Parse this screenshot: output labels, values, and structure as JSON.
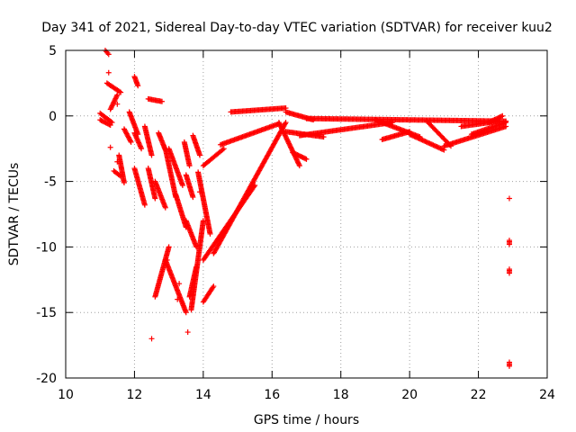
{
  "chart_data": {
    "type": "scatter",
    "title": "Day 341 of 2021, Sidereal Day-to-day VTEC variation (SDTVAR) for receiver kuu2",
    "xlabel": "GPS time / hours",
    "ylabel": "SDTVAR / TECUs",
    "xlim": [
      10,
      24
    ],
    "ylim": [
      -20,
      5
    ],
    "xticks": [
      10,
      12,
      14,
      16,
      18,
      20,
      22,
      24
    ],
    "yticks": [
      -20,
      -15,
      -10,
      -5,
      0,
      5
    ],
    "grid": true,
    "marker": "+",
    "colors": {
      "marker": "#ff0000",
      "grid": "#a0a0a0",
      "axis": "#000000"
    },
    "segments": [
      {
        "x": [
          11.0,
          11.3
        ],
        "y": [
          -0.3,
          -0.7
        ]
      },
      {
        "x": [
          11.0,
          11.35
        ],
        "y": [
          0.2,
          -0.5
        ]
      },
      {
        "x": [
          11.3,
          11.5
        ],
        "y": [
          0.5,
          1.6
        ]
      },
      {
        "x": [
          11.2,
          11.6
        ],
        "y": [
          2.5,
          1.8
        ]
      },
      {
        "x": [
          11.15,
          11.25
        ],
        "y": [
          5.0,
          4.7
        ]
      },
      {
        "x": [
          11.4,
          11.6
        ],
        "y": [
          -4.2,
          -4.6
        ]
      },
      {
        "x": [
          11.55,
          11.7
        ],
        "y": [
          -3.0,
          -5.1
        ]
      },
      {
        "x": [
          11.7,
          11.9
        ],
        "y": [
          -1.0,
          -2.0
        ]
      },
      {
        "x": [
          11.85,
          12.1
        ],
        "y": [
          0.3,
          -1.4
        ]
      },
      {
        "x": [
          12.0,
          12.1
        ],
        "y": [
          3.0,
          2.3
        ]
      },
      {
        "x": [
          12.0,
          12.2
        ],
        "y": [
          -1.3,
          -2.5
        ]
      },
      {
        "x": [
          12.0,
          12.3
        ],
        "y": [
          -4.0,
          -6.8
        ]
      },
      {
        "x": [
          12.3,
          12.5
        ],
        "y": [
          -0.8,
          -3.0
        ]
      },
      {
        "x": [
          12.4,
          12.8
        ],
        "y": [
          1.3,
          1.1
        ]
      },
      {
        "x": [
          12.4,
          12.6
        ],
        "y": [
          -4.0,
          -6.3
        ]
      },
      {
        "x": [
          12.6,
          12.9
        ],
        "y": [
          -5.0,
          -7.0
        ]
      },
      {
        "x": [
          12.7,
          12.9
        ],
        "y": [
          -1.3,
          -2.6
        ]
      },
      {
        "x": [
          12.9,
          13.2
        ],
        "y": [
          -2.5,
          -6.2
        ]
      },
      {
        "x": [
          12.6,
          13.0
        ],
        "y": [
          -13.8,
          -10.0
        ]
      },
      {
        "x": [
          12.9,
          13.5
        ],
        "y": [
          -11.0,
          -15.0
        ]
      },
      {
        "x": [
          13.0,
          13.4
        ],
        "y": [
          -2.5,
          -5.3
        ]
      },
      {
        "x": [
          13.2,
          13.5
        ],
        "y": [
          -6.0,
          -8.5
        ]
      },
      {
        "x": [
          13.45,
          13.6
        ],
        "y": [
          -2.0,
          -3.8
        ]
      },
      {
        "x": [
          13.5,
          13.7
        ],
        "y": [
          -4.5,
          -6.2
        ]
      },
      {
        "x": [
          13.5,
          13.8
        ],
        "y": [
          -8.0,
          -10.0
        ]
      },
      {
        "x": [
          13.6,
          13.8
        ],
        "y": [
          -13.8,
          -11.5
        ]
      },
      {
        "x": [
          13.65,
          14.0
        ],
        "y": [
          -14.8,
          -8.0
        ]
      },
      {
        "x": [
          13.7,
          13.9
        ],
        "y": [
          -1.5,
          -3.0
        ]
      },
      {
        "x": [
          13.85,
          14.2
        ],
        "y": [
          -4.3,
          -9.0
        ]
      },
      {
        "x": [
          14.0,
          14.3
        ],
        "y": [
          -14.2,
          -13.0
        ]
      },
      {
        "x": [
          14.0,
          15.5
        ],
        "y": [
          -11.0,
          -5.3
        ]
      },
      {
        "x": [
          14.0,
          14.6
        ],
        "y": [
          -3.8,
          -2.5
        ]
      },
      {
        "x": [
          14.3,
          16.4
        ],
        "y": [
          -10.5,
          -0.5
        ]
      },
      {
        "x": [
          14.5,
          16.2
        ],
        "y": [
          -2.2,
          -0.6
        ]
      },
      {
        "x": [
          14.8,
          16.4
        ],
        "y": [
          0.3,
          0.6
        ]
      },
      {
        "x": [
          16.2,
          16.8
        ],
        "y": [
          -0.5,
          -3.8
        ]
      },
      {
        "x": [
          16.6,
          17.0
        ],
        "y": [
          -2.8,
          -3.3
        ]
      },
      {
        "x": [
          16.4,
          17.2
        ],
        "y": [
          0.3,
          -0.3
        ]
      },
      {
        "x": [
          16.4,
          17.5
        ],
        "y": [
          -1.2,
          -1.6
        ]
      },
      {
        "x": [
          16.8,
          19.5
        ],
        "y": [
          -1.5,
          -0.5
        ]
      },
      {
        "x": [
          17.0,
          22.8
        ],
        "y": [
          -0.2,
          -0.4
        ]
      },
      {
        "x": [
          19.0,
          20.3
        ],
        "y": [
          -0.3,
          -1.6
        ]
      },
      {
        "x": [
          19.2,
          20.0
        ],
        "y": [
          -1.8,
          -1.2
        ]
      },
      {
        "x": [
          20.0,
          21.0
        ],
        "y": [
          -1.4,
          -2.6
        ]
      },
      {
        "x": [
          20.5,
          21.2
        ],
        "y": [
          -0.4,
          -2.3
        ]
      },
      {
        "x": [
          21.0,
          22.8
        ],
        "y": [
          -2.3,
          -0.8
        ]
      },
      {
        "x": [
          21.5,
          22.6
        ],
        "y": [
          -0.8,
          -0.4
        ]
      },
      {
        "x": [
          21.8,
          22.8
        ],
        "y": [
          -1.4,
          -0.5
        ]
      },
      {
        "x": [
          22.3,
          22.7
        ],
        "y": [
          -0.5,
          0.0
        ]
      },
      {
        "x": [
          22.9,
          22.9
        ],
        "y": [
          -11.7,
          -12.0
        ]
      },
      {
        "x": [
          22.9,
          22.9
        ],
        "y": [
          -9.5,
          -9.8
        ]
      },
      {
        "x": [
          22.9,
          22.9
        ],
        "y": [
          -18.8,
          -19.1
        ]
      }
    ],
    "isolated_points": {
      "x": [
        11.25,
        11.3,
        11.5,
        11.5,
        12.5,
        12.95,
        13.25,
        13.3,
        13.55,
        13.9,
        22.9
      ],
      "y": [
        3.3,
        -2.4,
        0.9,
        -3.5,
        -17.0,
        -11.0,
        -14.0,
        -12.8,
        -16.5,
        -5.8,
        -6.3
      ]
    }
  }
}
